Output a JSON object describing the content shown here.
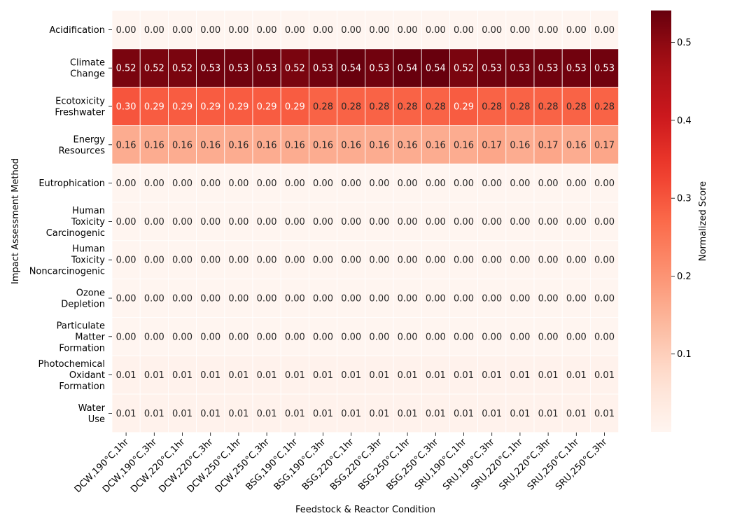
{
  "chart_data": {
    "type": "heatmap",
    "xlabel": "Feedstock & Reactor Condition",
    "ylabel": "Impact Assessment Method",
    "colorbar_label": "Normalized Score",
    "colormap": "Reds",
    "vmin": 0.0,
    "vmax": 0.541,
    "colorbar_ticks": [
      "0.1",
      "0.2",
      "0.3",
      "0.4",
      "0.5"
    ],
    "colorbar_tick_values": [
      0.1,
      0.2,
      0.3,
      0.4,
      0.5
    ],
    "columns": [
      "DCW,190°C,1hr",
      "DCW,190°C,3hr",
      "DCW,220°C,1hr",
      "DCW,220°C,3hr",
      "DCW,250°C,1hr",
      "DCW,250°C,3hr",
      "BSG,190°C,1hr",
      "BSG,190°C,3hr",
      "BSG,220°C,1hr",
      "BSG,220°C,3hr",
      "BSG,250°C,1hr",
      "BSG,250°C,3hr",
      "SRU,190°C,1hr",
      "SRU,190°C,3hr",
      "SRU,220°C,1hr",
      "SRU,220°C,3hr",
      "SRU,250°C,1hr",
      "SRU,250°C,3hr"
    ],
    "rows": [
      {
        "label": [
          "Acidification"
        ],
        "values": [
          0,
          0,
          0,
          0,
          0,
          0,
          0,
          0,
          0,
          0,
          0,
          0,
          0,
          0,
          0,
          0,
          0,
          0
        ],
        "annotations": [
          "0.00",
          "0.00",
          "0.00",
          "0.00",
          "0.00",
          "0.00",
          "0.00",
          "0.00",
          "0.00",
          "0.00",
          "0.00",
          "0.00",
          "0.00",
          "0.00",
          "0.00",
          "0.00",
          "0.00",
          "0.00"
        ]
      },
      {
        "label": [
          "Climate",
          "Change"
        ],
        "values": [
          0.52,
          0.52,
          0.52,
          0.53,
          0.53,
          0.53,
          0.52,
          0.53,
          0.54,
          0.53,
          0.54,
          0.54,
          0.52,
          0.53,
          0.53,
          0.53,
          0.53,
          0.53
        ],
        "annotations": [
          "0.52",
          "0.52",
          "0.52",
          "0.53",
          "0.53",
          "0.53",
          "0.52",
          "0.53",
          "0.54",
          "0.53",
          "0.54",
          "0.54",
          "0.52",
          "0.53",
          "0.53",
          "0.53",
          "0.53",
          "0.53"
        ]
      },
      {
        "label": [
          "Ecotoxicity",
          "Freshwater"
        ],
        "values": [
          0.3,
          0.29,
          0.29,
          0.29,
          0.29,
          0.29,
          0.29,
          0.28,
          0.28,
          0.28,
          0.28,
          0.28,
          0.29,
          0.28,
          0.28,
          0.28,
          0.28,
          0.28
        ],
        "annotations": [
          "0.30",
          "0.29",
          "0.29",
          "0.29",
          "0.29",
          "0.29",
          "0.29",
          "0.28",
          "0.28",
          "0.28",
          "0.28",
          "0.28",
          "0.29",
          "0.28",
          "0.28",
          "0.28",
          "0.28",
          "0.28"
        ]
      },
      {
        "label": [
          "Energy",
          "Resources"
        ],
        "values": [
          0.16,
          0.16,
          0.16,
          0.16,
          0.16,
          0.16,
          0.16,
          0.16,
          0.16,
          0.16,
          0.16,
          0.16,
          0.16,
          0.17,
          0.16,
          0.17,
          0.16,
          0.17
        ],
        "annotations": [
          "0.16",
          "0.16",
          "0.16",
          "0.16",
          "0.16",
          "0.16",
          "0.16",
          "0.16",
          "0.16",
          "0.16",
          "0.16",
          "0.16",
          "0.16",
          "0.17",
          "0.16",
          "0.17",
          "0.16",
          "0.17"
        ]
      },
      {
        "label": [
          "Eutrophication"
        ],
        "values": [
          0,
          0,
          0,
          0,
          0,
          0,
          0,
          0,
          0,
          0,
          0,
          0,
          0,
          0,
          0,
          0,
          0,
          0
        ],
        "annotations": [
          "0.00",
          "0.00",
          "0.00",
          "0.00",
          "0.00",
          "0.00",
          "0.00",
          "0.00",
          "0.00",
          "0.00",
          "0.00",
          "0.00",
          "0.00",
          "0.00",
          "0.00",
          "0.00",
          "0.00",
          "0.00"
        ]
      },
      {
        "label": [
          "Human",
          "Toxicity",
          "Carcinogenic"
        ],
        "values": [
          0,
          0,
          0,
          0,
          0,
          0,
          0,
          0,
          0,
          0,
          0,
          0,
          0,
          0,
          0,
          0,
          0,
          0
        ],
        "annotations": [
          "0.00",
          "0.00",
          "0.00",
          "0.00",
          "0.00",
          "0.00",
          "0.00",
          "0.00",
          "0.00",
          "0.00",
          "0.00",
          "0.00",
          "0.00",
          "0.00",
          "0.00",
          "0.00",
          "0.00",
          "0.00"
        ]
      },
      {
        "label": [
          "Human",
          "Toxicity",
          "Noncarcinogenic"
        ],
        "values": [
          0,
          0,
          0,
          0,
          0,
          0,
          0,
          0,
          0,
          0,
          0,
          0,
          0,
          0,
          0,
          0,
          0,
          0
        ],
        "annotations": [
          "0.00",
          "0.00",
          "0.00",
          "0.00",
          "0.00",
          "0.00",
          "0.00",
          "0.00",
          "0.00",
          "0.00",
          "0.00",
          "0.00",
          "0.00",
          "0.00",
          "0.00",
          "0.00",
          "0.00",
          "0.00"
        ]
      },
      {
        "label": [
          "Ozone",
          "Depletion"
        ],
        "values": [
          0,
          0,
          0,
          0,
          0,
          0,
          0,
          0,
          0,
          0,
          0,
          0,
          0,
          0,
          0,
          0,
          0,
          0
        ],
        "annotations": [
          "0.00",
          "0.00",
          "0.00",
          "0.00",
          "0.00",
          "0.00",
          "0.00",
          "0.00",
          "0.00",
          "0.00",
          "0.00",
          "0.00",
          "0.00",
          "0.00",
          "0.00",
          "0.00",
          "0.00",
          "0.00"
        ]
      },
      {
        "label": [
          "Particulate",
          "Matter",
          "Formation"
        ],
        "values": [
          0,
          0,
          0,
          0,
          0,
          0,
          0,
          0,
          0,
          0,
          0,
          0,
          0,
          0,
          0,
          0,
          0,
          0
        ],
        "annotations": [
          "0.00",
          "0.00",
          "0.00",
          "0.00",
          "0.00",
          "0.00",
          "0.00",
          "0.00",
          "0.00",
          "0.00",
          "0.00",
          "0.00",
          "0.00",
          "0.00",
          "0.00",
          "0.00",
          "0.00",
          "0.00"
        ]
      },
      {
        "label": [
          "Photochemical",
          "Oxidant",
          "Formation"
        ],
        "values": [
          0.01,
          0.01,
          0.01,
          0.01,
          0.01,
          0.01,
          0.01,
          0.01,
          0.01,
          0.01,
          0.01,
          0.01,
          0.01,
          0.01,
          0.01,
          0.01,
          0.01,
          0.01
        ],
        "annotations": [
          "0.01",
          "0.01",
          "0.01",
          "0.01",
          "0.01",
          "0.01",
          "0.01",
          "0.01",
          "0.01",
          "0.01",
          "0.01",
          "0.01",
          "0.01",
          "0.01",
          "0.01",
          "0.01",
          "0.01",
          "0.01"
        ]
      },
      {
        "label": [
          "Water",
          "Use"
        ],
        "values": [
          0.01,
          0.01,
          0.01,
          0.01,
          0.01,
          0.01,
          0.01,
          0.01,
          0.01,
          0.01,
          0.01,
          0.01,
          0.01,
          0.01,
          0.01,
          0.01,
          0.01,
          0.01
        ],
        "annotations": [
          "0.01",
          "0.01",
          "0.01",
          "0.01",
          "0.01",
          "0.01",
          "0.01",
          "0.01",
          "0.01",
          "0.01",
          "0.01",
          "0.01",
          "0.01",
          "0.01",
          "0.01",
          "0.01",
          "0.01",
          "0.01"
        ]
      }
    ]
  }
}
